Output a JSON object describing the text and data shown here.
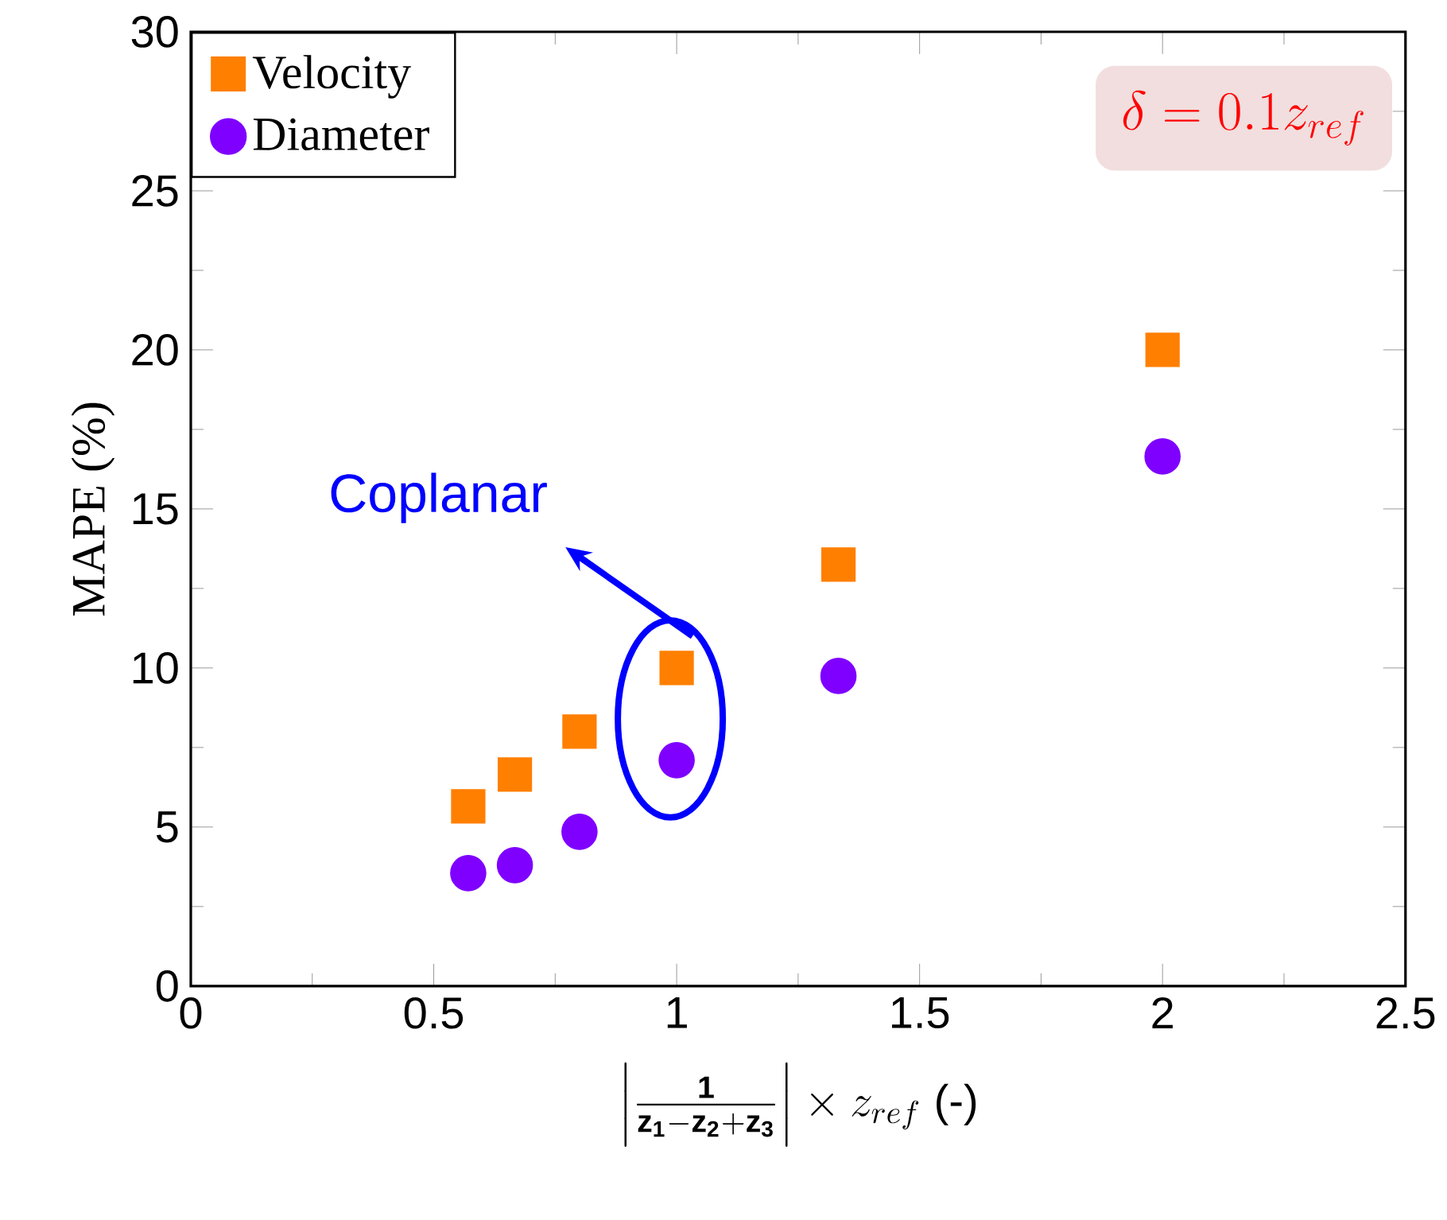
{
  "chart_data": {
    "type": "scatter",
    "xlabel": "\\left|\\frac{\\mathbf{1}}{\\mathbf{z_1-z_2+z_3}}\\right|\\times z_{ref}\\ \\text{(-)}",
    "ylabel": "MAPE (%)",
    "x": [
      0.571,
      0.667,
      0.8,
      1,
      1.333,
      2
    ],
    "series": [
      {
        "name": "Velocity",
        "color": "#ff7f00",
        "marker": "square",
        "values": [
          5.65,
          6.65,
          8.0,
          10.0,
          13.25,
          20.0
        ]
      },
      {
        "name": "Diameter",
        "color": "#7f00ff",
        "marker": "circle",
        "values": [
          3.55,
          3.8,
          4.85,
          7.1,
          9.75,
          16.65
        ]
      }
    ],
    "xlim": [
      0,
      2.5
    ],
    "ylim": [
      0,
      30
    ],
    "xticks": [
      0,
      0.5,
      1,
      1.5,
      2,
      2.5
    ],
    "yticks": [
      0,
      5,
      10,
      15,
      20,
      25,
      30
    ],
    "legend": "top left",
    "annotations": [
      "\\delta = 0.1z_{ref}",
      "Coplanar"
    ]
  }
}
